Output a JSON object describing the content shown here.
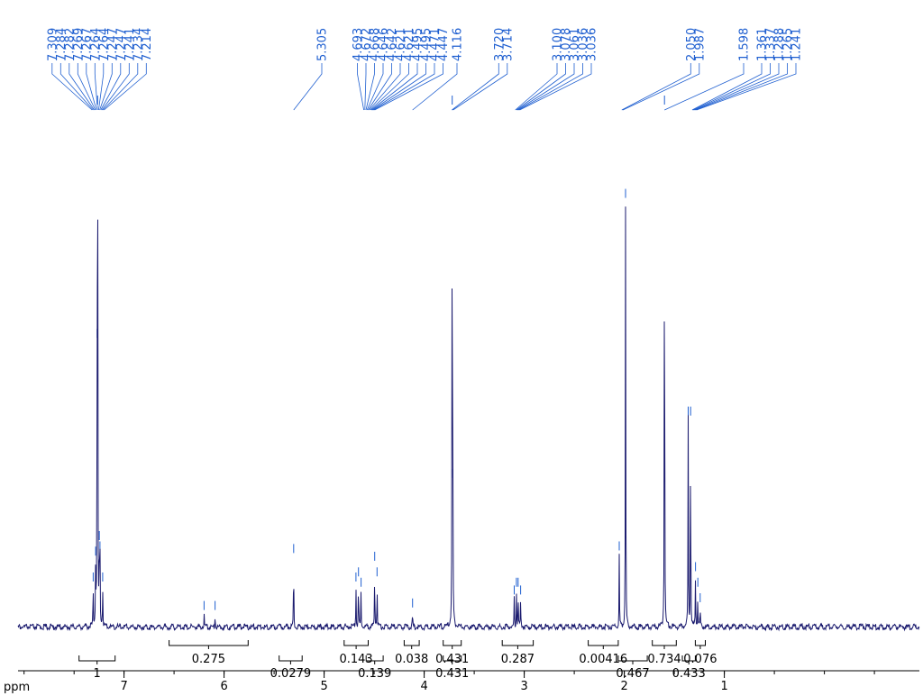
{
  "chart_data": {
    "type": "line",
    "title": "",
    "xlabel": "ppm",
    "ylabel": "",
    "x_reversed": true,
    "xlim": [
      8.06,
      -0.95
    ],
    "ylim": [
      0,
      1
    ],
    "colors": {
      "spectrum": "#1a1a6e",
      "peak_labels": "#1f5fd0",
      "axis": "#000000",
      "integrals": "#000000"
    },
    "x_ticks": [
      {
        "value": 7,
        "label": "7"
      },
      {
        "value": 6,
        "label": "6"
      },
      {
        "value": 5,
        "label": "5"
      },
      {
        "value": 4,
        "label": "4"
      },
      {
        "value": 3,
        "label": "3"
      },
      {
        "value": 2,
        "label": "2"
      },
      {
        "value": 1,
        "label": "1"
      }
    ],
    "peak_groups": [
      {
        "labels": [
          "7.309",
          "7.284",
          "7.282",
          "7.269",
          "7.267",
          "7.264",
          "7.264",
          "7.247",
          "7.247",
          "7.241",
          "7.234",
          "7.214"
        ],
        "target_ppm": 7.26
      },
      {
        "labels": [
          "5.305"
        ],
        "target_ppm": 5.305
      },
      {
        "labels": [
          "4.693",
          "4.672",
          "4.668",
          "4.646",
          "4.642",
          "4.621",
          "4.621",
          "4.495",
          "4.495",
          "4.471",
          "4.447"
        ],
        "target_ppm": 4.55
      },
      {
        "labels": [
          "4.116"
        ],
        "target_ppm": 4.116
      },
      {
        "labels": [
          "3.720",
          "3.714"
        ],
        "target_ppm": 3.717
      },
      {
        "labels": [
          "3.100",
          "3.078",
          "3.061",
          "3.036",
          "3.036"
        ],
        "target_ppm": 3.068
      },
      {
        "labels": [
          "2.050",
          "1.987"
        ],
        "target_ppm": 2.02
      },
      {
        "labels": [
          "1.598"
        ],
        "target_ppm": 1.598
      },
      {
        "labels": [
          "1.361",
          "1.337",
          "1.288",
          "1.265",
          "1.241"
        ],
        "target_ppm": 1.3
      }
    ],
    "peaks": [
      {
        "ppm": 7.309,
        "height": 0.08
      },
      {
        "ppm": 7.284,
        "height": 0.13
      },
      {
        "ppm": 7.269,
        "height": 0.55
      },
      {
        "ppm": 7.264,
        "height": 1.0
      },
      {
        "ppm": 7.247,
        "height": 0.16
      },
      {
        "ppm": 7.241,
        "height": 0.14
      },
      {
        "ppm": 7.214,
        "height": 0.08
      },
      {
        "ppm": 6.2,
        "height": 0.025
      },
      {
        "ppm": 6.09,
        "height": 0.025
      },
      {
        "ppm": 5.305,
        "height": 0.135
      },
      {
        "ppm": 4.682,
        "height": 0.08
      },
      {
        "ppm": 4.657,
        "height": 0.09
      },
      {
        "ppm": 4.631,
        "height": 0.07
      },
      {
        "ppm": 4.495,
        "height": 0.12
      },
      {
        "ppm": 4.471,
        "height": 0.09
      },
      {
        "ppm": 4.116,
        "height": 0.03
      },
      {
        "ppm": 3.72,
        "height": 1.0
      },
      {
        "ppm": 3.714,
        "height": 0.28
      },
      {
        "ppm": 3.1,
        "height": 0.055
      },
      {
        "ppm": 3.078,
        "height": 0.07
      },
      {
        "ppm": 3.061,
        "height": 0.07
      },
      {
        "ppm": 3.036,
        "height": 0.055
      },
      {
        "ppm": 2.05,
        "height": 0.14
      },
      {
        "ppm": 1.987,
        "height": 0.82
      },
      {
        "ppm": 1.598,
        "height": 1.0
      },
      {
        "ppm": 1.361,
        "height": 0.4
      },
      {
        "ppm": 1.337,
        "height": 0.4
      },
      {
        "ppm": 1.288,
        "height": 0.1
      },
      {
        "ppm": 1.265,
        "height": 0.07
      },
      {
        "ppm": 1.241,
        "height": 0.04
      }
    ],
    "integrals": [
      {
        "from": 7.45,
        "to": 7.09,
        "value": "1",
        "row": 2
      },
      {
        "from": 6.55,
        "to": 5.76,
        "value": "0.275",
        "row": 1
      },
      {
        "from": 5.45,
        "to": 5.22,
        "value": "0.0279",
        "row": 2
      },
      {
        "from": 4.8,
        "to": 4.56,
        "value": "0.143",
        "row": 1
      },
      {
        "from": 4.58,
        "to": 4.41,
        "value": "0.139",
        "row": 2
      },
      {
        "from": 4.2,
        "to": 4.05,
        "value": "0.038",
        "row": 1
      },
      {
        "from": 3.81,
        "to": 3.63,
        "value": "0.431",
        "row": 1
      },
      {
        "from": 3.81,
        "to": 3.63,
        "value": "0.431",
        "row": 2
      },
      {
        "from": 3.22,
        "to": 2.91,
        "value": "0.287",
        "row": 1
      },
      {
        "from": 2.36,
        "to": 2.06,
        "value": "0.00416",
        "row": 1
      },
      {
        "from": 2.06,
        "to": 1.77,
        "value": "0.467",
        "row": 2
      },
      {
        "from": 1.72,
        "to": 1.48,
        "value": "0.734",
        "row": 1
      },
      {
        "from": 1.42,
        "to": 1.29,
        "value": "0.433",
        "row": 2
      },
      {
        "from": 1.29,
        "to": 1.19,
        "value": "0.076",
        "row": 1
      }
    ]
  }
}
